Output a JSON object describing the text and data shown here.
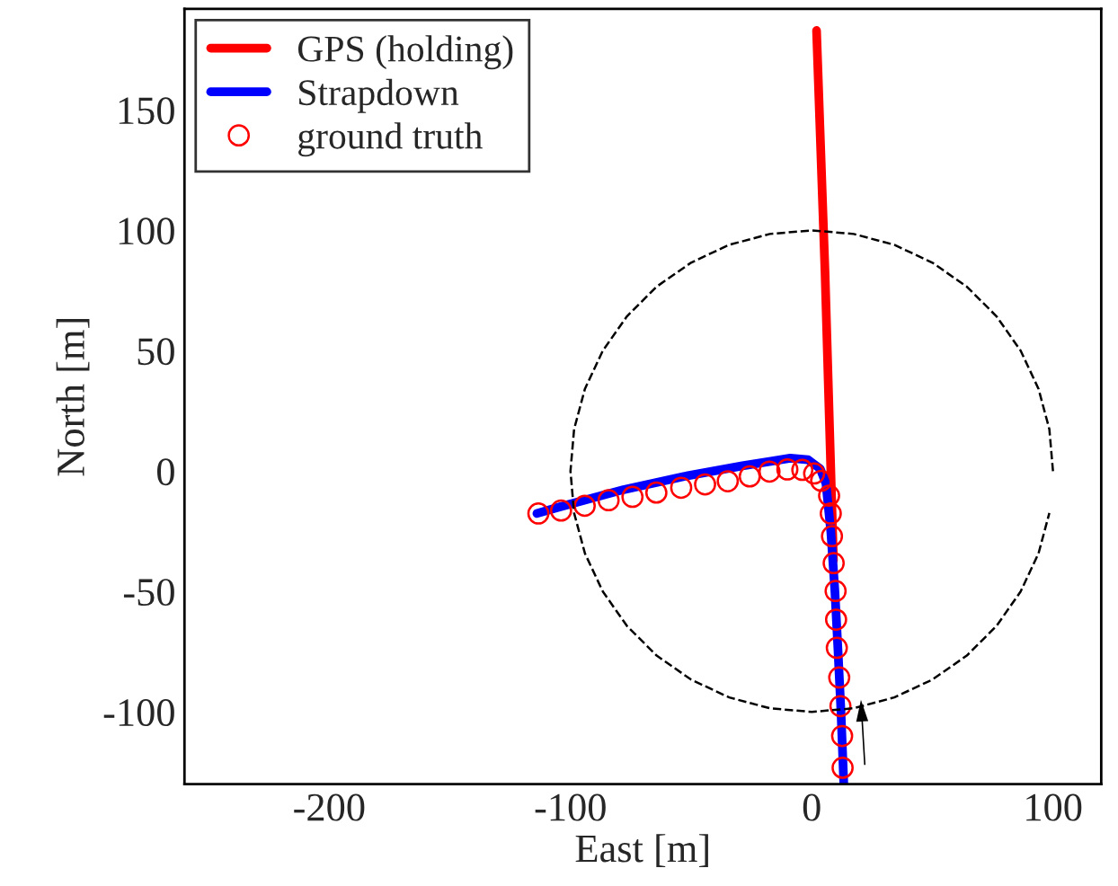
{
  "chart_data": {
    "type": "line",
    "xlabel": "East [m]",
    "ylabel": "North [m]",
    "xlim": [
      -260,
      120
    ],
    "ylim": [
      -130,
      192
    ],
    "xticks": [
      -200,
      -100,
      0,
      100
    ],
    "yticks": [
      -100,
      -50,
      0,
      50,
      100,
      150
    ],
    "grid": false,
    "legend": "top left",
    "series": [
      {
        "name": "GPS (holding)",
        "color": "#ff0000",
        "x": [
          2,
          5.5,
          9
        ],
        "values": [
          183,
          83,
          -37
        ]
      },
      {
        "name": "Strapdown",
        "color": "#0000ff",
        "x": [
          -113.9,
          -105,
          -78,
          -53,
          -28.7,
          -8.9,
          -1.5,
          3.5,
          5.9,
          7.9,
          9.6,
          10.9,
          12.1,
          13.3
        ],
        "values": [
          -17.6,
          -15,
          -7.7,
          -2.2,
          2.2,
          5.4,
          4.7,
          1.0,
          -5.2,
          -25,
          -49.8,
          -74.6,
          -99.4,
          -130
        ]
      },
      {
        "name": "ground truth",
        "type": "scatter",
        "marker": "circle",
        "color": "#ff0000",
        "x": [
          -113.3,
          -103.9,
          -94.1,
          -84.2,
          -74.3,
          -64.4,
          -54.1,
          -44.2,
          -34.8,
          -25.7,
          -17.5,
          -10.1,
          -3.9,
          1.0,
          3.9,
          7.2,
          7.9,
          8.4,
          9.1,
          9.9,
          10.1,
          10.4,
          11.4,
          11.9,
          12.6,
          12.8
        ],
        "values": [
          -17.6,
          -16.4,
          -14.4,
          -12.1,
          -10.7,
          -8.9,
          -6.9,
          -5.5,
          -4.2,
          -2.2,
          -0.2,
          0.7,
          0.5,
          -1.0,
          -4.0,
          -10.2,
          -17.6,
          -27.0,
          -38.2,
          -49.8,
          -61.7,
          -73.4,
          -85.7,
          -97.6,
          -110,
          -123.2
        ]
      },
      {
        "line_style": "dashed",
        "color": "#000000",
        "x": [
          100,
          98.5,
          94.0,
          86.6,
          76.6,
          64.3,
          50.0,
          34.2,
          17.4,
          0,
          -17.4,
          -34.2,
          -50.0,
          -64.3,
          -76.6,
          -86.6,
          -94.0,
          -98.5,
          -100,
          -98.5,
          -94.0,
          -86.6,
          -76.6,
          -64.3,
          -50.0,
          -34.2,
          -17.4,
          0,
          17.4,
          34.2,
          50.0,
          64.3,
          76.6,
          86.6,
          94.0,
          98.5
        ],
        "values": [
          0,
          17.4,
          34.2,
          50.0,
          64.3,
          76.6,
          86.6,
          94.0,
          98.5,
          100,
          98.5,
          94.0,
          86.6,
          76.6,
          64.3,
          50.0,
          34.2,
          17.4,
          0,
          -17.4,
          -34.2,
          -50.0,
          -64.3,
          -76.6,
          -86.6,
          -94.0,
          -98.5,
          -100,
          -98.5,
          -94.0,
          -86.6,
          -76.6,
          -64.3,
          -50.0,
          -34.2,
          -17.4
        ]
      }
    ]
  }
}
